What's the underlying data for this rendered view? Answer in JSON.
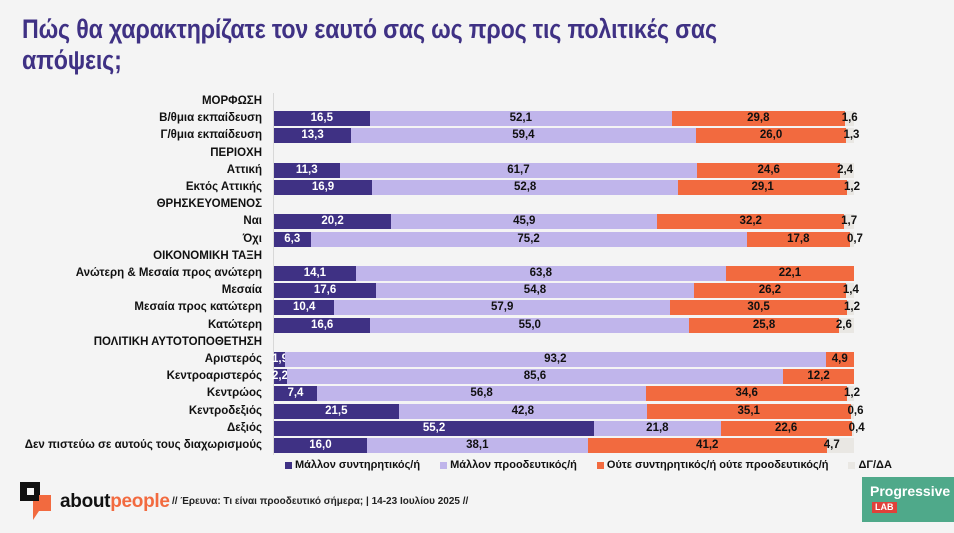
{
  "title": "Πώς θα χαρακτηρίζατε τον εαυτό σας ως προς τις πολιτικές σας απόψεις;",
  "chart_data": {
    "type": "bar",
    "orientation": "horizontal",
    "stacked": true,
    "title": "Πώς θα χαρακτηρίζατε τον εαυτό σας ως προς τις πολιτικές σας απόψεις;",
    "xlabel": "",
    "ylabel": "",
    "xlim": [
      0,
      100
    ],
    "grid": false,
    "legend_position": "bottom",
    "series_names": [
      "Μάλλον συντηρητικός/ή",
      "Μάλλον προοδευτικός/ή",
      "Ούτε συντηρητικός/ή ούτε προοδευτικός/ή",
      "ΔΓ/ΔΑ"
    ],
    "series_colors": [
      "#3f3184",
      "#c0b5eb",
      "#f26a3f",
      "#e9e7e3"
    ],
    "rows": [
      {
        "label": "ΜΟΡΦΩΣΗ",
        "group": true
      },
      {
        "label": "Β/θμια εκπαίδευση",
        "values": [
          16.5,
          52.1,
          29.8,
          1.6
        ],
        "labels": [
          "16,5",
          "52,1",
          "29,8",
          "1,6"
        ]
      },
      {
        "label": "Γ/θμια εκπαίδευση",
        "values": [
          13.3,
          59.4,
          26.0,
          1.3
        ],
        "labels": [
          "13,3",
          "59,4",
          "26,0",
          "1,3"
        ]
      },
      {
        "label": "ΠΕΡΙΟΧΗ",
        "group": true
      },
      {
        "label": "Αττική",
        "values": [
          11.3,
          61.7,
          24.6,
          2.4
        ],
        "labels": [
          "11,3",
          "61,7",
          "24,6",
          "2,4"
        ]
      },
      {
        "label": "Εκτός Αττικής",
        "values": [
          16.9,
          52.8,
          29.1,
          1.2
        ],
        "labels": [
          "16,9",
          "52,8",
          "29,1",
          "1,2"
        ]
      },
      {
        "label": "ΘΡΗΣΚΕΥΟΜΕΝΟΣ",
        "group": true
      },
      {
        "label": "Ναι",
        "values": [
          20.2,
          45.9,
          32.2,
          1.7
        ],
        "labels": [
          "20,2",
          "45,9",
          "32,2",
          "1,7"
        ]
      },
      {
        "label": "Όχι",
        "values": [
          6.3,
          75.2,
          17.8,
          0.7
        ],
        "labels": [
          "6,3",
          "75,2",
          "17,8",
          "0,7"
        ]
      },
      {
        "label": "ΟΙΚΟΝΟΜΙΚΗ ΤΑΞΗ",
        "group": true
      },
      {
        "label": "Ανώτερη & Μεσαία προς ανώτερη",
        "values": [
          14.1,
          63.8,
          22.1,
          0
        ],
        "labels": [
          "14,1",
          "63,8",
          "22,1",
          ""
        ]
      },
      {
        "label": "Μεσαία",
        "values": [
          17.6,
          54.8,
          26.2,
          1.4
        ],
        "labels": [
          "17,6",
          "54,8",
          "26,2",
          "1,4"
        ]
      },
      {
        "label": "Μεσαία προς κατώτερη",
        "values": [
          10.4,
          57.9,
          30.5,
          1.2
        ],
        "labels": [
          "10,4",
          "57,9",
          "30,5",
          "1,2"
        ]
      },
      {
        "label": "Κατώτερη",
        "values": [
          16.6,
          55.0,
          25.8,
          2.6
        ],
        "labels": [
          "16,6",
          "55,0",
          "25,8",
          "2,6"
        ]
      },
      {
        "label": "ΠΟΛΙΤΙΚΗ ΑΥΤΟΤΟΠΟΘΕΤΗΣΗ",
        "group": true
      },
      {
        "label": "Αριστερός",
        "values": [
          1.9,
          93.2,
          4.9,
          0
        ],
        "labels": [
          "1,9",
          "93,2",
          "4,9",
          ""
        ]
      },
      {
        "label": "Κεντροαριστερός",
        "values": [
          2.2,
          85.6,
          12.2,
          0
        ],
        "labels": [
          "2,2",
          "85,6",
          "12,2",
          ""
        ]
      },
      {
        "label": "Κεντρώος",
        "values": [
          7.4,
          56.8,
          34.6,
          1.2
        ],
        "labels": [
          "7,4",
          "56,8",
          "34,6",
          "1,2"
        ]
      },
      {
        "label": "Κεντροδεξιός",
        "values": [
          21.5,
          42.8,
          35.1,
          0.6
        ],
        "labels": [
          "21,5",
          "42,8",
          "35,1",
          "0,6"
        ]
      },
      {
        "label": "Δεξιός",
        "values": [
          55.2,
          21.8,
          22.6,
          0.4
        ],
        "labels": [
          "55,2",
          "21,8",
          "22,6",
          "0,4"
        ]
      },
      {
        "label": "Δεν πιστεύω σε αυτούς τους διαχωρισμούς",
        "values": [
          16.0,
          38.1,
          41.2,
          4.7
        ],
        "labels": [
          "16,0",
          "38,1",
          "41,2",
          "4,7"
        ]
      }
    ]
  },
  "legend": [
    {
      "label": "Μάλλον συντηρητικός/ή",
      "color": "#3f3184"
    },
    {
      "label": "Μάλλον προοδευτικός/ή",
      "color": "#c0b5eb"
    },
    {
      "label": "Ούτε συντηρητικός/ή ούτε προοδευτικός/ή",
      "color": "#f26a3f"
    },
    {
      "label": "ΔΓ/ΔΑ",
      "color": "#e9e7e3"
    }
  ],
  "footer": {
    "brand_part1": "about",
    "brand_part2": "people",
    "note": "// Έρευνα: Τι είναι προοδευτικό σήμερα; | 14-23 Ιουλίου 2025 //",
    "partner_name": "Progressive",
    "partner_sub": "LAB"
  }
}
